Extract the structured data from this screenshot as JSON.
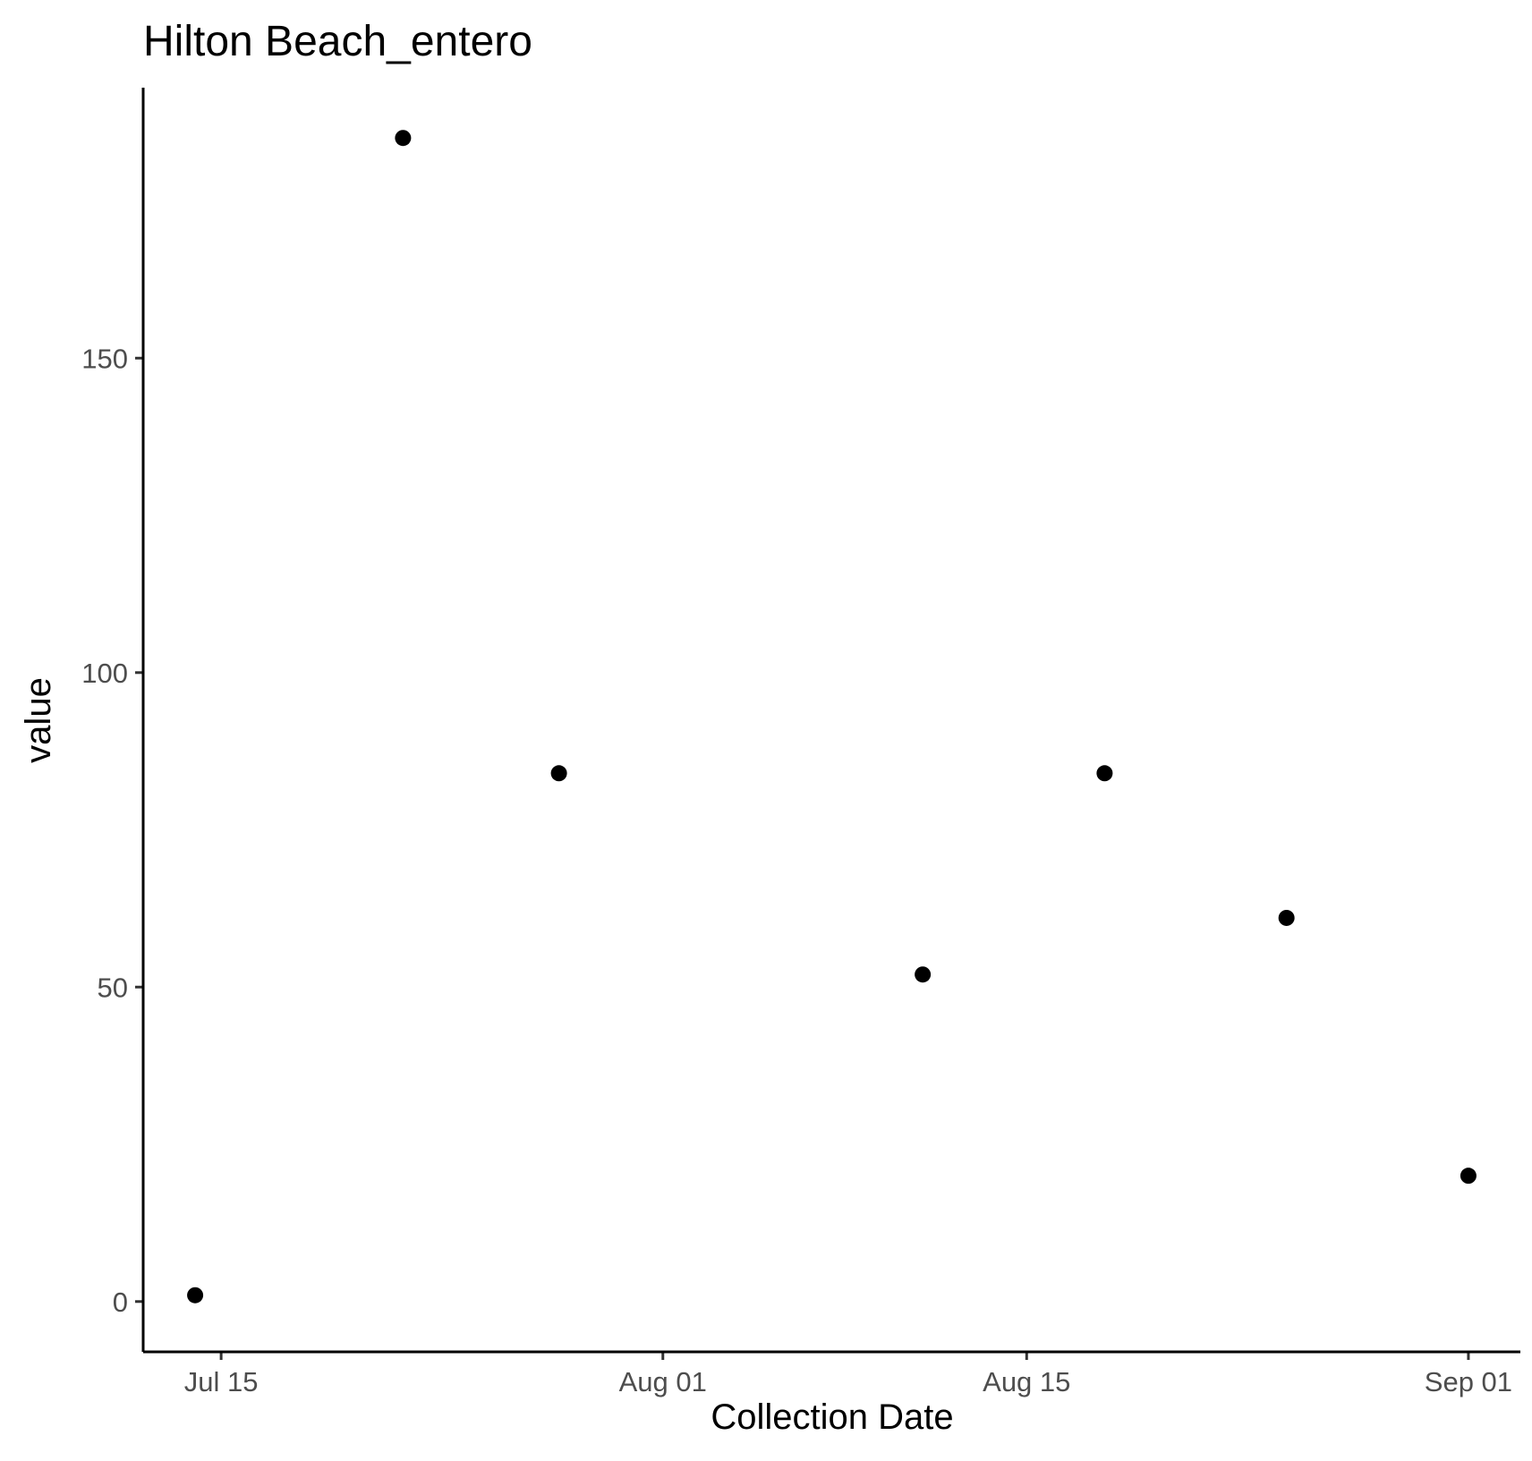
{
  "chart_data": {
    "type": "scatter",
    "title": "Hilton Beach_entero",
    "xlabel": "Collection Date",
    "ylabel": "value",
    "x_type": "date",
    "xlim": [
      "2020-07-12",
      "2020-09-03"
    ],
    "ylim": [
      -8,
      193
    ],
    "x_ticks": [
      {
        "value": "2020-07-15",
        "label": "Jul 15"
      },
      {
        "value": "2020-08-01",
        "label": "Aug 01"
      },
      {
        "value": "2020-08-15",
        "label": "Aug 15"
      },
      {
        "value": "2020-09-01",
        "label": "Sep 01"
      }
    ],
    "y_ticks": [
      {
        "value": 0,
        "label": "0"
      },
      {
        "value": 50,
        "label": "50"
      },
      {
        "value": 100,
        "label": "100"
      },
      {
        "value": 150,
        "label": "150"
      }
    ],
    "points": [
      {
        "x": "2020-07-14",
        "y": 1
      },
      {
        "x": "2020-07-22",
        "y": 185
      },
      {
        "x": "2020-07-28",
        "y": 84
      },
      {
        "x": "2020-08-11",
        "y": 52
      },
      {
        "x": "2020-08-18",
        "y": 84
      },
      {
        "x": "2020-08-25",
        "y": 61
      },
      {
        "x": "2020-09-01",
        "y": 20
      }
    ],
    "grid": false,
    "legend": "none",
    "point_color": "#000000"
  }
}
